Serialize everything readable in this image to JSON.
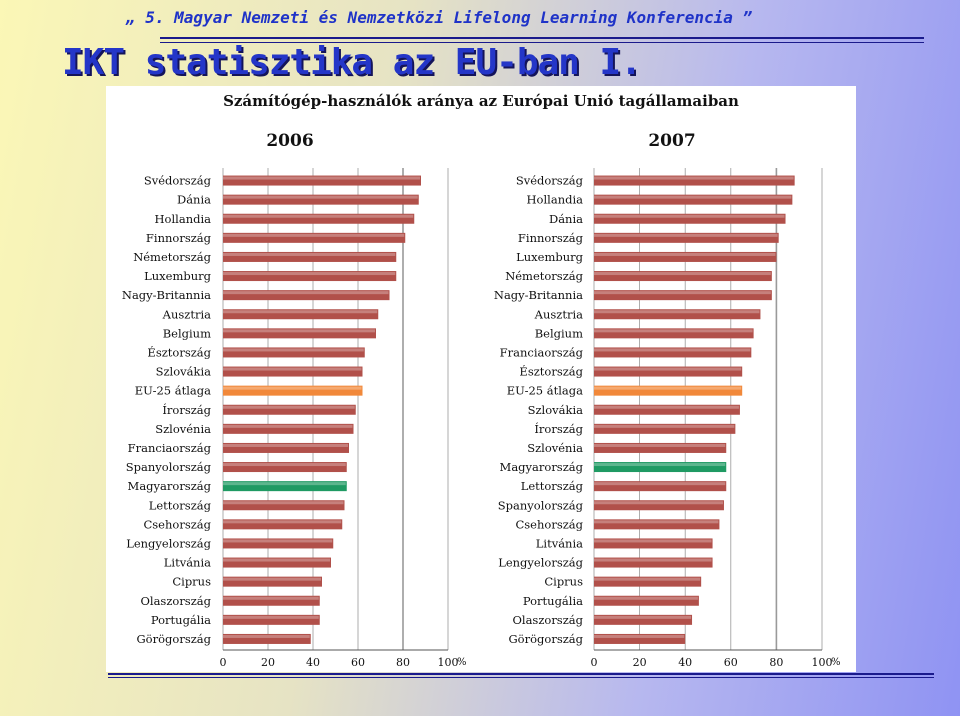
{
  "header": {
    "text": "„ 5. Magyar Nemzeti és Nemzetközi Lifelong Learning Konferencia ”"
  },
  "slide": {
    "title": "IKT statisztika az EU-ban I."
  },
  "colors": {
    "bar": "#b1504a",
    "eu_avg": "#f1883a",
    "hungary": "#1f9a63",
    "grid": "#9a9a9a"
  },
  "chart_data": [
    {
      "type": "bar",
      "orientation": "horizontal",
      "title": "Számítógép-használók aránya az Európai Unió tagállamaiban",
      "subtitle": "2006",
      "xlabel": "%",
      "xlim": [
        0,
        100
      ],
      "xticks": [
        0,
        20,
        40,
        60,
        80,
        100
      ],
      "grid": true,
      "categories": [
        "Svédország",
        "Dánia",
        "Hollandia",
        "Finnország",
        "Németország",
        "Luxemburg",
        "Nagy-Britannia",
        "Ausztria",
        "Belgium",
        "Észtország",
        "Szlovákia",
        "EU-25 átlaga",
        "Írország",
        "Szlovénia",
        "Franciaország",
        "Spanyolország",
        "Magyarország",
        "Lettország",
        "Csehország",
        "Lengyelország",
        "Litvánia",
        "Ciprus",
        "Olaszország",
        "Portugália",
        "Görögország"
      ],
      "values": [
        88,
        87,
        85,
        81,
        77,
        77,
        74,
        69,
        68,
        63,
        62,
        62,
        59,
        58,
        56,
        55,
        55,
        54,
        53,
        49,
        48,
        44,
        43,
        43,
        39
      ],
      "highlight": {
        "EU-25 átlaga": "eu_avg",
        "Magyarország": "hungary"
      }
    },
    {
      "type": "bar",
      "orientation": "horizontal",
      "subtitle": "2007",
      "xlabel": "%",
      "xlim": [
        0,
        100
      ],
      "xticks": [
        0,
        20,
        40,
        60,
        80,
        100
      ],
      "grid": true,
      "categories": [
        "Svédország",
        "Hollandia",
        "Dánia",
        "Finnország",
        "Luxemburg",
        "Németország",
        "Nagy-Britannia",
        "Ausztria",
        "Belgium",
        "Franciaország",
        "Észtország",
        "EU-25 átlaga",
        "Szlovákia",
        "Írország",
        "Szlovénia",
        "Magyarország",
        "Lettország",
        "Spanyolország",
        "Csehország",
        "Litvánia",
        "Lengyelország",
        "Ciprus",
        "Portugália",
        "Olaszország",
        "Görögország"
      ],
      "values": [
        88,
        87,
        84,
        81,
        80,
        78,
        78,
        73,
        70,
        69,
        65,
        65,
        64,
        62,
        58,
        58,
        58,
        57,
        55,
        52,
        52,
        47,
        46,
        43,
        40
      ],
      "highlight": {
        "EU-25 átlaga": "eu_avg",
        "Magyarország": "hungary"
      }
    }
  ]
}
